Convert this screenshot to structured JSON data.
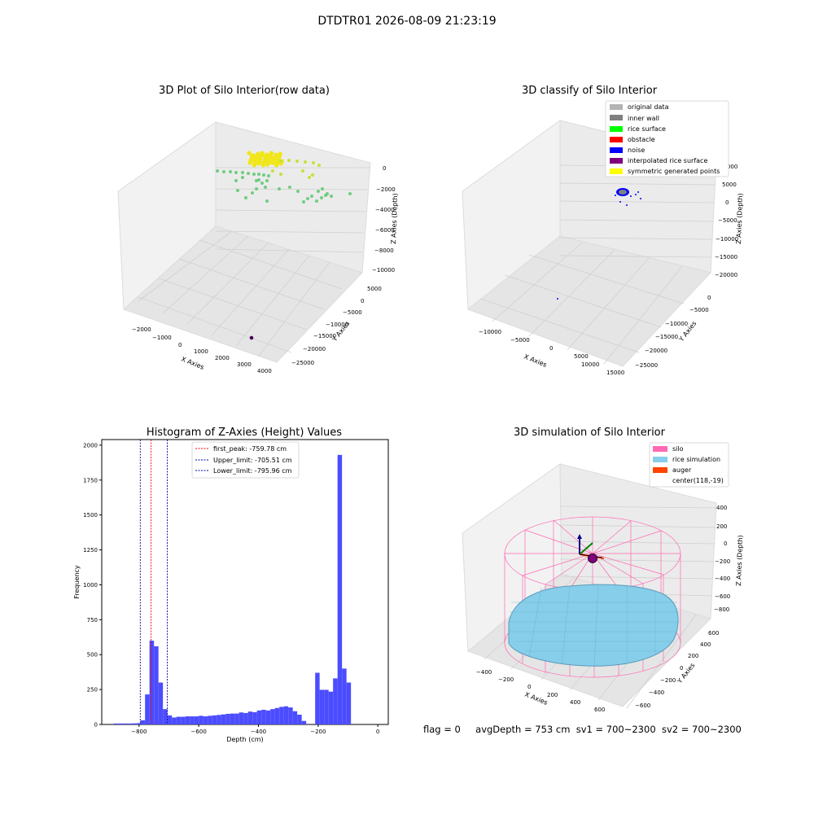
{
  "suptitle": "DTDTR01 2026-08-09 21:23:19",
  "footer": {
    "flag": "flag = 0",
    "avg_depth": "avgDepth = 753 cm",
    "sv1": "sv1 = 700~2300",
    "sv2": "sv2 = 700~2300"
  },
  "chart_data": [
    {
      "type": "scatter",
      "title": "3D Plot of Silo Interior(row data)",
      "projection": "3d",
      "xlabel": "X Axies",
      "ylabel": "Y Axies",
      "zlabel": "Z Axies (Depth)",
      "x_ticks": [
        "−2000",
        "−1000",
        "0",
        "1000",
        "2000",
        "3000",
        "4000"
      ],
      "y_ticks": [
        "5000",
        "0",
        "−5000",
        "−10000",
        "−15000",
        "−20000",
        "−25000"
      ],
      "z_ticks": [
        "0",
        "−2000",
        "−4000",
        "−6000",
        "−8000",
        "−10000"
      ],
      "xlim": [
        -2500,
        4200
      ],
      "ylim": [
        -27000,
        5000
      ],
      "zlim": [
        -10500,
        500
      ],
      "series": [
        {
          "color_group": "upper cluster",
          "color": "#f0e61a"
        },
        {
          "color_group": "middle band",
          "color": "#5cc86f"
        },
        {
          "color_group": "outlier",
          "color": "#45005a"
        }
      ],
      "grid": true
    },
    {
      "type": "scatter",
      "title": "3D classify of Silo Interior",
      "projection": "3d",
      "xlabel": "X Axies",
      "ylabel": "Y Axies",
      "zlabel": "Z Axies (Depth)",
      "x_ticks": [
        "−10000",
        "−5000",
        "0",
        "5000",
        "10000",
        "15000"
      ],
      "y_ticks": [
        "0",
        "−5000",
        "−10000",
        "−15000",
        "−20000",
        "−25000"
      ],
      "z_ticks": [
        "10000",
        "5000",
        "0",
        "−5000",
        "−10000",
        "−15000",
        "−20000"
      ],
      "legend_position": "top-right",
      "legend": [
        {
          "label": "original data",
          "color": "#b3b3b3"
        },
        {
          "label": "inner wall",
          "color": "#808080"
        },
        {
          "label": "rice surface",
          "color": "#00ff00"
        },
        {
          "label": "obstacle",
          "color": "#ff0000"
        },
        {
          "label": "noise",
          "color": "#0000ff"
        },
        {
          "label": "interpolated rice surface",
          "color": "#800080"
        },
        {
          "label": "symmetric generated points",
          "color": "#ffff00"
        }
      ],
      "grid": true
    },
    {
      "type": "bar",
      "title": "Histogram of Z-Axies (Height) Values",
      "xlabel": "Depth (cm)",
      "ylabel": "Frequency",
      "xlim": [
        -925,
        35
      ],
      "ylim": [
        0,
        2040
      ],
      "x_ticks": [
        -800,
        -600,
        -400,
        -200,
        0
      ],
      "y_ticks": [
        0,
        250,
        500,
        750,
        1000,
        1250,
        1500,
        1750,
        2000
      ],
      "bin_width": 15,
      "bins": [
        [
          -885,
          7
        ],
        [
          -870,
          7
        ],
        [
          -855,
          7
        ],
        [
          -840,
          7
        ],
        [
          -825,
          8
        ],
        [
          -810,
          9
        ],
        [
          -795,
          30
        ],
        [
          -780,
          215
        ],
        [
          -765,
          600
        ],
        [
          -750,
          560
        ],
        [
          -735,
          300
        ],
        [
          -720,
          110
        ],
        [
          -705,
          65
        ],
        [
          -690,
          50
        ],
        [
          -675,
          55
        ],
        [
          -660,
          55
        ],
        [
          -645,
          58
        ],
        [
          -630,
          58
        ],
        [
          -615,
          58
        ],
        [
          -600,
          62
        ],
        [
          -585,
          58
        ],
        [
          -570,
          62
        ],
        [
          -555,
          65
        ],
        [
          -540,
          68
        ],
        [
          -525,
          72
        ],
        [
          -510,
          76
        ],
        [
          -495,
          78
        ],
        [
          -480,
          78
        ],
        [
          -465,
          86
        ],
        [
          -450,
          82
        ],
        [
          -435,
          92
        ],
        [
          -420,
          88
        ],
        [
          -405,
          100
        ],
        [
          -390,
          105
        ],
        [
          -375,
          100
        ],
        [
          -360,
          110
        ],
        [
          -345,
          118
        ],
        [
          -330,
          126
        ],
        [
          -315,
          130
        ],
        [
          -300,
          122
        ],
        [
          -285,
          95
        ],
        [
          -270,
          70
        ],
        [
          -255,
          25
        ],
        [
          -210,
          370
        ],
        [
          -195,
          248
        ],
        [
          -180,
          248
        ],
        [
          -165,
          235
        ],
        [
          -150,
          330
        ],
        [
          -135,
          1930
        ],
        [
          -120,
          400
        ],
        [
          -105,
          300
        ]
      ],
      "bar_color": "#4c4cff",
      "vlines": [
        {
          "label": "first_peak: -759.78 cm",
          "x": -759.78,
          "color": "#ff0000"
        },
        {
          "label": "Upper_limit: -705.51 cm",
          "x": -705.51,
          "color": "#0000aa"
        },
        {
          "label": "Lower_limit: -795.96 cm",
          "x": -795.96,
          "color": "#0000aa"
        }
      ],
      "legend_position": "top-center"
    },
    {
      "type": "surface",
      "title": "3D simulation of Silo Interior",
      "projection": "3d",
      "xlabel": "X Axies",
      "ylabel": "Y Axies",
      "zlabel": "Z Axies (Depth)",
      "x_ticks": [
        "−400",
        "−200",
        "0",
        "200",
        "400",
        "600"
      ],
      "y_ticks": [
        "600",
        "400",
        "200",
        "0",
        "−200",
        "−400",
        "−600"
      ],
      "z_ticks": [
        "400",
        "200",
        "0",
        "−200",
        "−400",
        "−600",
        "−800"
      ],
      "legend_position": "top-right",
      "legend": [
        {
          "label": "silo",
          "color": "#ff69b4"
        },
        {
          "label": "rice simulation",
          "color": "#87ceeb"
        },
        {
          "label": "auger",
          "color": "#ff4500"
        },
        {
          "label": "center(118,-19)",
          "color": ""
        }
      ],
      "grid": true
    }
  ]
}
